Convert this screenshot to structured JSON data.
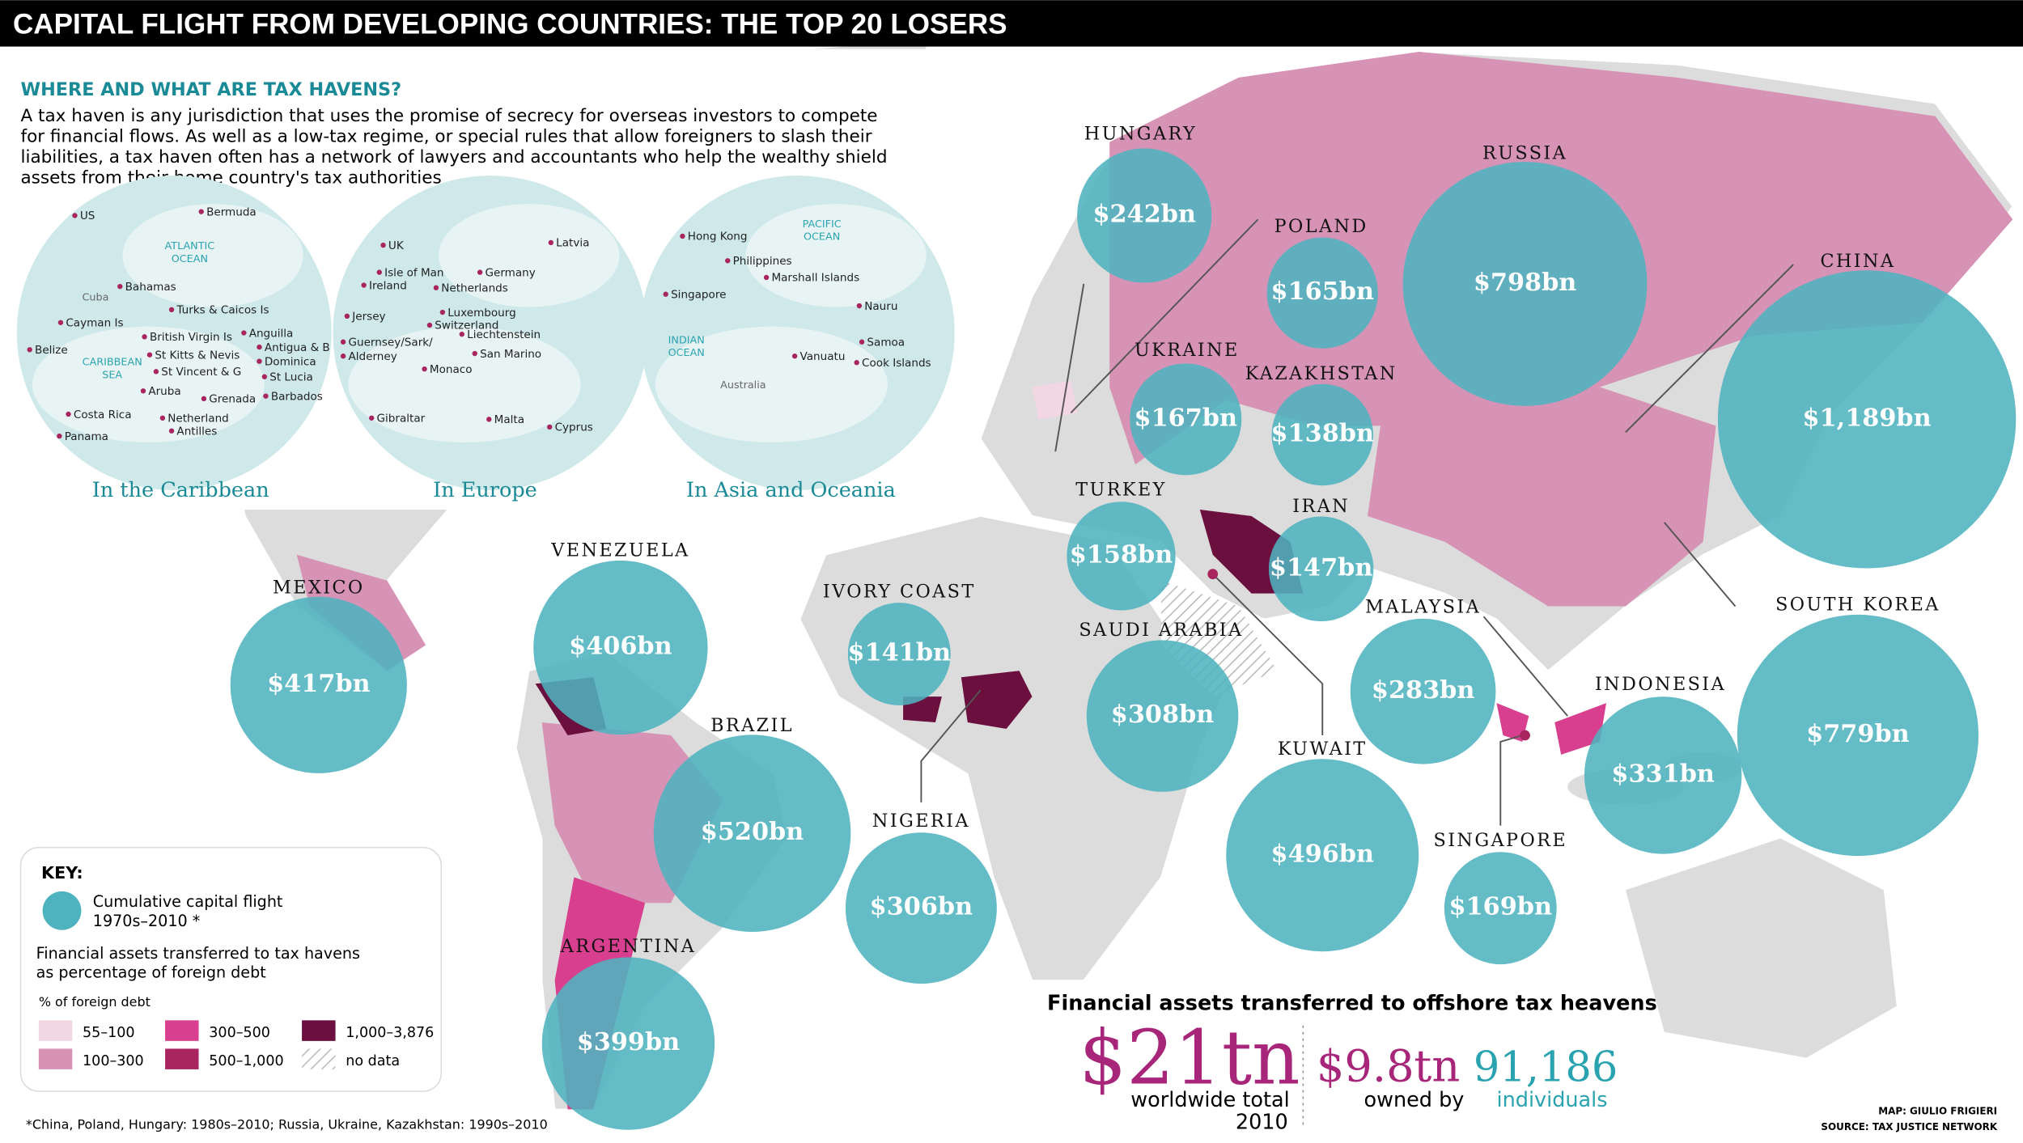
{
  "title": "CAPITAL FLIGHT FROM DEVELOPING COUNTRIES: THE TOP 20 LOSERS",
  "explainer": {
    "heading": "WHERE AND WHAT ARE TAX HAVENS?",
    "lines": [
      "A tax haven is any jurisdiction that uses the promise of secrecy for overseas investors to compete",
      "for financial flows. As well as a low-tax regime, or special rules that allow foreigners to slash their",
      "liabilities, a tax haven often has a network of lawyers and accountants who help the wealthy shield",
      "assets from their home country's tax authorities"
    ]
  },
  "insets": [
    {
      "caption": "In the Caribbean",
      "oceans": [
        "ATLANTIC",
        "OCEAN",
        "Cuba",
        "CARIBBEAN",
        "SEA"
      ],
      "places": [
        "US",
        "Bermuda",
        "Bahamas",
        "Turks & Caicos Is",
        "Cayman Is",
        "British Virgin Is",
        "Anguilla",
        "Antigua & B",
        "St Kitts & Nevis",
        "Dominica",
        "St Vincent & G",
        "St Lucia",
        "Belize",
        "Aruba",
        "Grenada",
        "Barbados",
        "Costa Rica",
        "Netherland",
        "Antilles",
        "Panama"
      ]
    },
    {
      "caption": "In Europe",
      "oceans": [],
      "places": [
        "UK",
        "Latvia",
        "Isle of Man",
        "Germany",
        "Ireland",
        "Netherlands",
        "Luxembourg",
        "Jersey",
        "Switzerland",
        "Liechtenstein",
        "Guernsey/Sark/",
        "Alderney",
        "San Marino",
        "Monaco",
        "Gibraltar",
        "Malta",
        "Cyprus"
      ]
    },
    {
      "caption": "In Asia and Oceania",
      "oceans": [
        "PACIFIC",
        "OCEAN",
        "INDIAN",
        "OCEAN",
        "Australia"
      ],
      "places": [
        "Hong Kong",
        "Philippines",
        "Marshall Islands",
        "Singapore",
        "Nauru",
        "Samoa",
        "Vanuatu",
        "Cook Islands"
      ]
    }
  ],
  "countries": [
    {
      "name": "HUNGARY",
      "value": 242,
      "value_label": "$242bn"
    },
    {
      "name": "POLAND",
      "value": 165,
      "value_label": "$165bn"
    },
    {
      "name": "RUSSIA",
      "value": 798,
      "value_label": "$798bn"
    },
    {
      "name": "CHINA",
      "value": 1189,
      "value_label": "$1,189bn"
    },
    {
      "name": "UKRAINE",
      "value": 167,
      "value_label": "$167bn"
    },
    {
      "name": "KAZAKHSTAN",
      "value": 138,
      "value_label": "$138bn"
    },
    {
      "name": "TURKEY",
      "value": 158,
      "value_label": "$158bn"
    },
    {
      "name": "IRAN",
      "value": 147,
      "value_label": "$147bn"
    },
    {
      "name": "MEXICO",
      "value": 417,
      "value_label": "$417bn"
    },
    {
      "name": "VENEZUELA",
      "value": 406,
      "value_label": "$406bn"
    },
    {
      "name": "IVORY COAST",
      "value": 141,
      "value_label": "$141bn"
    },
    {
      "name": "SAUDI ARABIA",
      "value": 308,
      "value_label": "$308bn"
    },
    {
      "name": "MALAYSIA",
      "value": 283,
      "value_label": "$283bn"
    },
    {
      "name": "SOUTH KOREA",
      "value": 779,
      "value_label": "$779bn"
    },
    {
      "name": "INDONESIA",
      "value": 331,
      "value_label": "$331bn"
    },
    {
      "name": "BRAZIL",
      "value": 520,
      "value_label": "$520bn"
    },
    {
      "name": "NIGERIA",
      "value": 306,
      "value_label": "$306bn"
    },
    {
      "name": "KUWAIT",
      "value": 496,
      "value_label": "$496bn"
    },
    {
      "name": "SINGAPORE",
      "value": 169,
      "value_label": "$169bn"
    },
    {
      "name": "ARGENTINA",
      "value": 399,
      "value_label": "$399bn"
    }
  ],
  "key": {
    "heading": "KEY:",
    "bubble_lines": [
      "Cumulative capital flight",
      "1970s–2010 *"
    ],
    "sub_lines": [
      "Financial assets transferred to tax havens",
      "as percentage of foreign debt"
    ],
    "unit": "% of foreign debt",
    "classes": [
      {
        "label": "55–100",
        "color": "#f2d6e3"
      },
      {
        "label": "100–300",
        "color": "#d793b5"
      },
      {
        "label": "300–500",
        "color": "#d8408f"
      },
      {
        "label": "500–1,000",
        "color": "#a8255f"
      },
      {
        "label": "1,000–3,876",
        "color": "#6b0f3e"
      }
    ],
    "no_data": "no data"
  },
  "totals": {
    "heading": "Financial assets transferred to offshore tax heavens",
    "total": "$21tn",
    "total_lines": [
      "worldwide total",
      "2010"
    ],
    "owned": "$9.8tn",
    "owned_label": "owned by",
    "people": "91,186",
    "people_label": "individuals"
  },
  "footnote": "*China, Poland, Hungary: 1980s–2010; Russia, Ukraine, Kazakhstan: 1990s–2010",
  "credits": [
    "MAP: GIULIO FRIGIERI",
    "SOURCE: TAX JUSTICE NETWORK"
  ]
}
